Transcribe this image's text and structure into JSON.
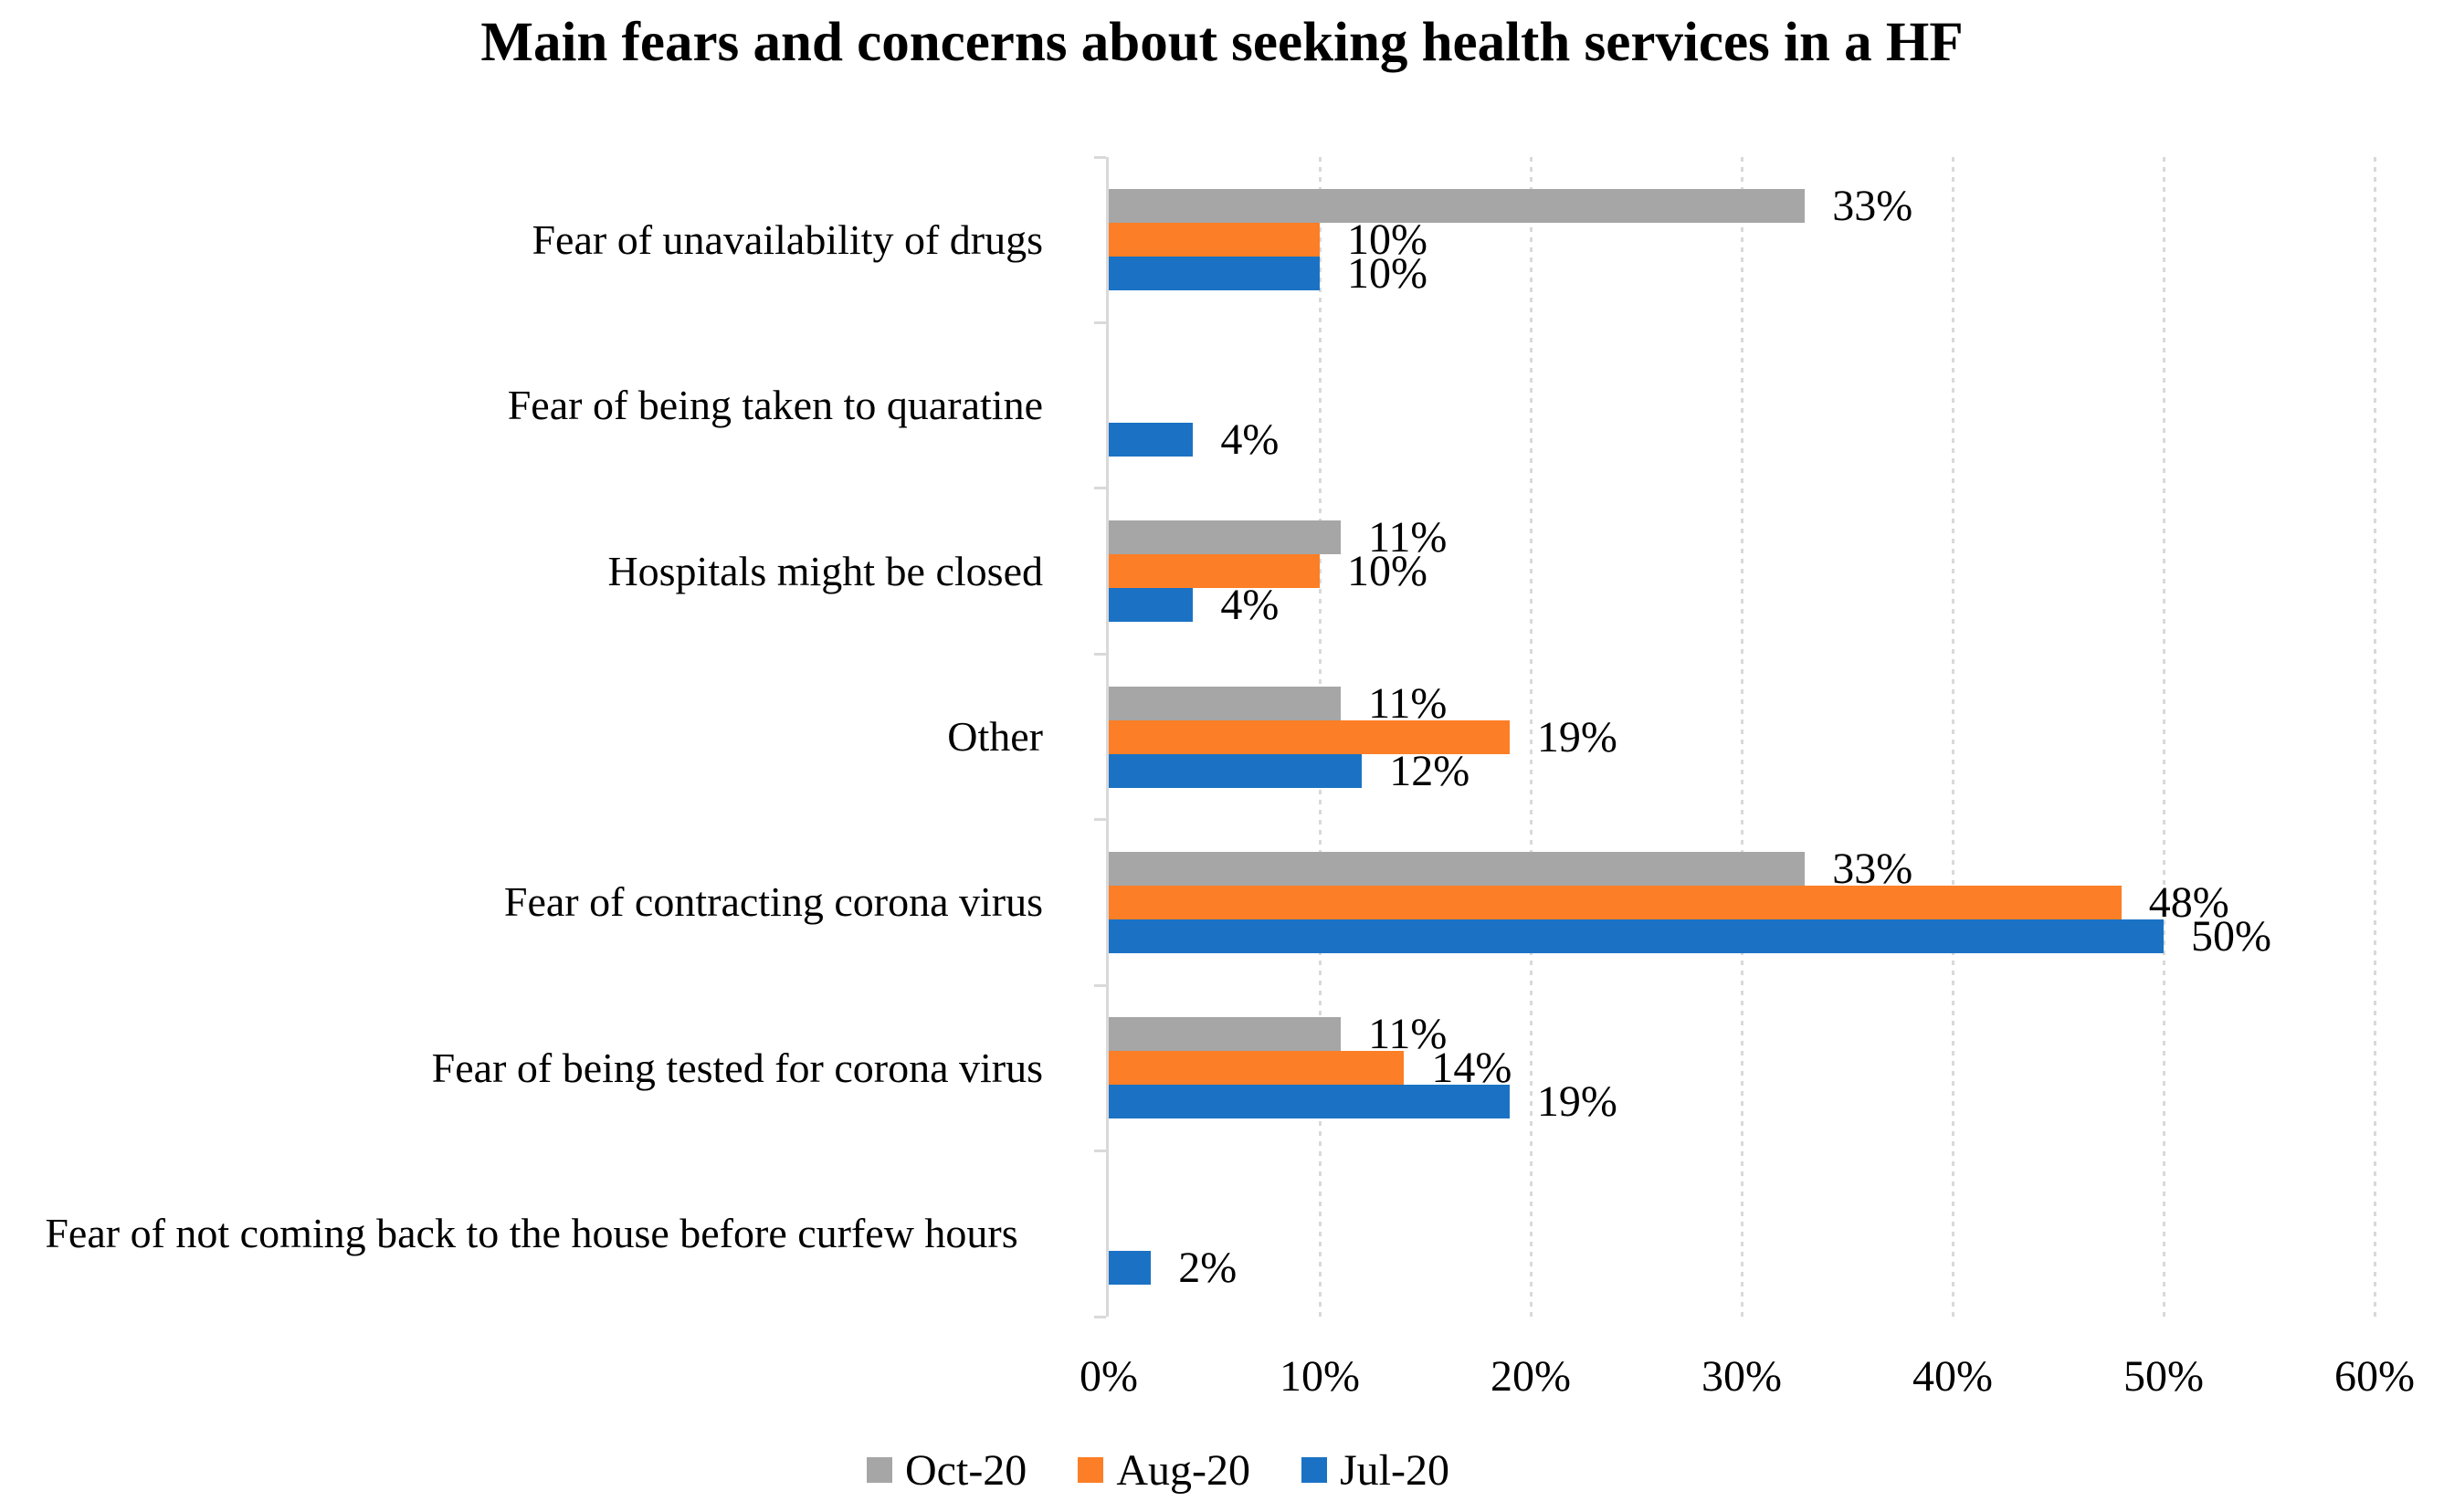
{
  "chart_data": {
    "type": "bar",
    "orientation": "horizontal",
    "title": "Main fears and concerns about seeking health services in a HF",
    "categories": [
      "Fear of unavailability of drugs",
      "Fear of being taken to quaratine",
      "Hospitals might be closed",
      "Other",
      "Fear of contracting corona virus",
      "Fear of being tested for corona virus",
      "Fear of not coming back to the house before curfew hours"
    ],
    "series": [
      {
        "name": "Oct-20",
        "color": "#A6A6A6",
        "values": [
          33,
          null,
          11,
          11,
          33,
          11,
          null
        ]
      },
      {
        "name": "Aug-20",
        "color": "#FC7E26",
        "values": [
          10,
          null,
          10,
          19,
          48,
          14,
          null
        ]
      },
      {
        "name": "Jul-20",
        "color": "#1B72C4",
        "values": [
          10,
          4,
          4,
          12,
          50,
          19,
          2
        ]
      }
    ],
    "value_label_format": "{v}%",
    "xlabel": "",
    "ylabel": "",
    "x_axis": {
      "min": 0,
      "max": 60,
      "step": 10,
      "tick_labels": [
        "0%",
        "10%",
        "20%",
        "30%",
        "40%",
        "50%",
        "60%"
      ],
      "grid": "dashed-vertical"
    },
    "legend": {
      "position": "bottom",
      "entries": [
        "Oct-20",
        "Aug-20",
        "Jul-20"
      ]
    },
    "colors": {
      "gridline": "#D9D9D9",
      "axis": "#D9D9D9",
      "text": "#000000",
      "background": "#FFFFFF"
    }
  }
}
